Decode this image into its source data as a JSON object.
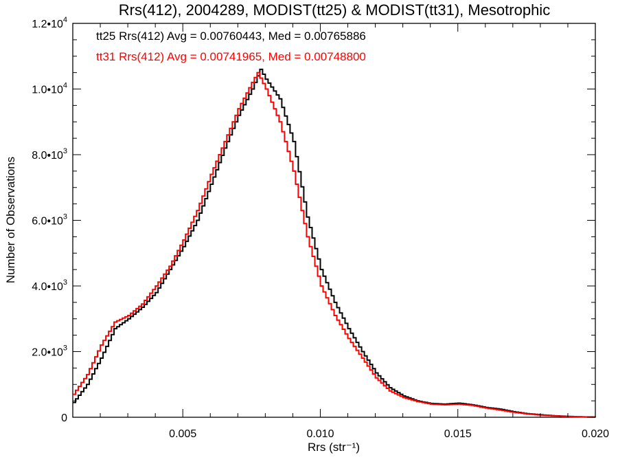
{
  "chart_data": {
    "type": "line",
    "title": "Rrs(412), 2004289, MODIST(tt25) & MODIST(tt31), Mesotrophic",
    "xlabel": "Rrs (str⁻¹)",
    "ylabel": "Number of Observations",
    "xlim": [
      0.001,
      0.02
    ],
    "ylim": [
      0,
      12000
    ],
    "grid": false,
    "x_ticks": [
      {
        "value": 0.005,
        "label": "0.005"
      },
      {
        "value": 0.01,
        "label": "0.010"
      },
      {
        "value": 0.015,
        "label": "0.015"
      },
      {
        "value": 0.02,
        "label": "0.020"
      }
    ],
    "y_ticks": [
      {
        "value": 0,
        "mant": "0",
        "exp": ""
      },
      {
        "value": 2000,
        "mant": "2.0•10",
        "exp": "3"
      },
      {
        "value": 4000,
        "mant": "4.0•10",
        "exp": "3"
      },
      {
        "value": 6000,
        "mant": "6.0•10",
        "exp": "3"
      },
      {
        "value": 8000,
        "mant": "8.0•10",
        "exp": "3"
      },
      {
        "value": 10000,
        "mant": "1.0•10",
        "exp": "4"
      },
      {
        "value": 12000,
        "mant": "1.2•10",
        "exp": "4"
      }
    ],
    "annotations": [
      {
        "text": "tt25 Rrs(412) Avg = 0.00760443, Med = 0.00765886",
        "color": "#000000"
      },
      {
        "text": "tt31 Rrs(412) Avg = 0.00741965, Med = 0.00748800",
        "color": "#ff0000"
      }
    ],
    "series": [
      {
        "color": "#000000",
        "x": [
          0.001,
          0.0015,
          0.002,
          0.0025,
          0.003,
          0.0035,
          0.004,
          0.0045,
          0.005,
          0.0055,
          0.006,
          0.0065,
          0.007,
          0.0075,
          0.0078,
          0.008,
          0.0085,
          0.009,
          0.0095,
          0.01,
          0.0105,
          0.011,
          0.0115,
          0.012,
          0.0125,
          0.013,
          0.0135,
          0.014,
          0.0145,
          0.015,
          0.0155,
          0.016,
          0.0165,
          0.017,
          0.0175,
          0.018,
          0.0185,
          0.019,
          0.0195,
          0.02
        ],
        "values": [
          450,
          1000,
          1800,
          2700,
          3000,
          3350,
          3800,
          4500,
          5200,
          6000,
          7100,
          8200,
          9200,
          10000,
          10600,
          10300,
          9700,
          8400,
          6100,
          4500,
          3500,
          2700,
          2000,
          1350,
          900,
          650,
          500,
          420,
          400,
          430,
          380,
          300,
          250,
          170,
          110,
          75,
          45,
          25,
          12,
          8
        ]
      },
      {
        "color": "#ff0000",
        "x": [
          0.001,
          0.0015,
          0.002,
          0.0025,
          0.003,
          0.0035,
          0.004,
          0.0045,
          0.005,
          0.0055,
          0.006,
          0.0065,
          0.007,
          0.0075,
          0.0077,
          0.008,
          0.0085,
          0.009,
          0.0095,
          0.01,
          0.0105,
          0.011,
          0.0115,
          0.012,
          0.0125,
          0.013,
          0.0135,
          0.014,
          0.0145,
          0.015,
          0.0155,
          0.016,
          0.0165,
          0.017,
          0.0175,
          0.018,
          0.0185,
          0.019,
          0.0195,
          0.02
        ],
        "values": [
          700,
          1300,
          2200,
          2900,
          3100,
          3450,
          4000,
          4600,
          5400,
          6300,
          7400,
          8400,
          9400,
          10200,
          10500,
          10000,
          9000,
          7500,
          5500,
          4000,
          3100,
          2400,
          1800,
          1200,
          800,
          600,
          480,
          400,
          380,
          400,
          360,
          280,
          220,
          150,
          100,
          65,
          40,
          20,
          10,
          5
        ]
      }
    ]
  }
}
